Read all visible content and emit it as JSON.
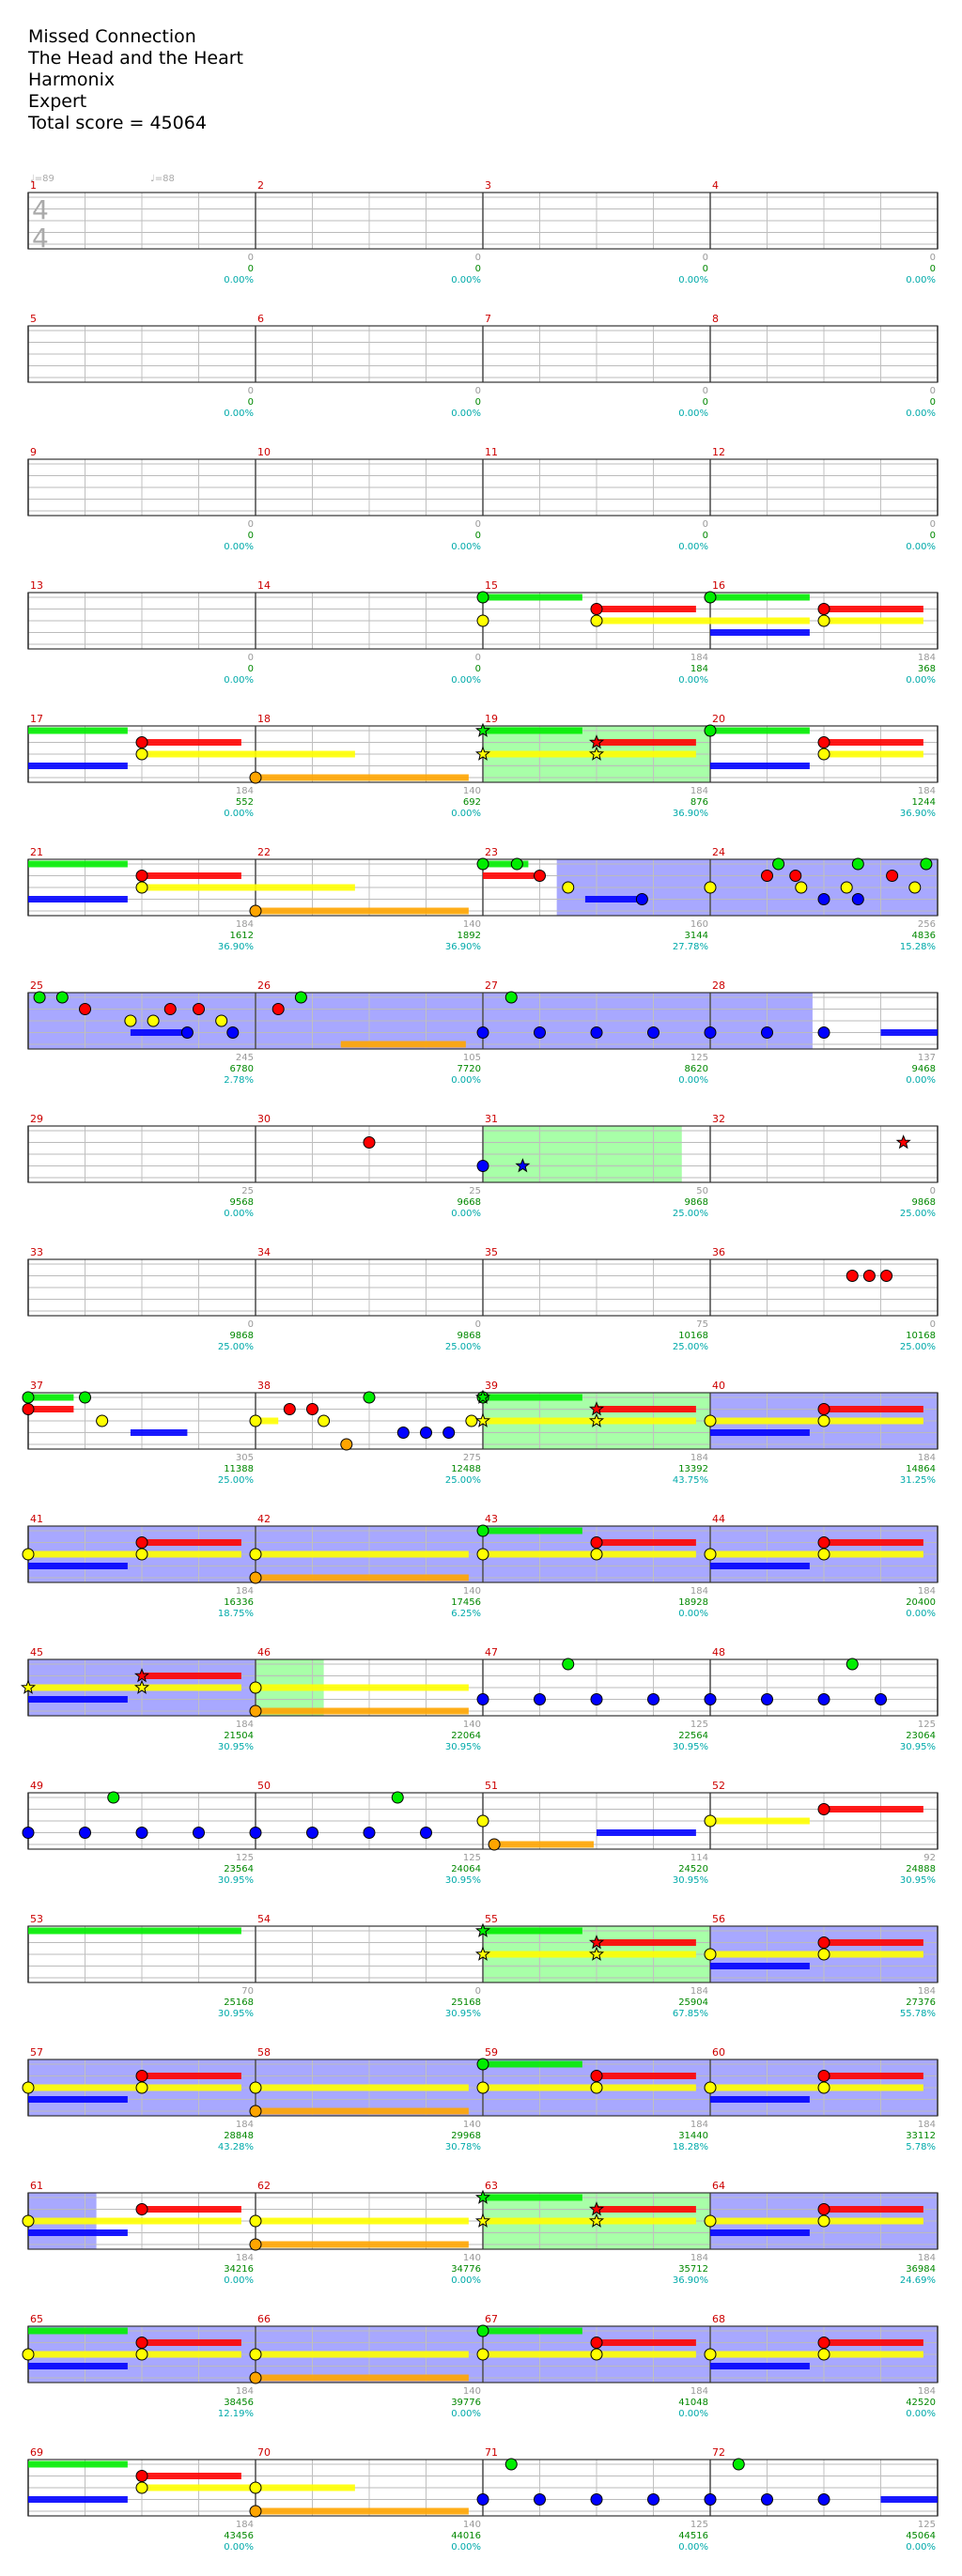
{
  "header": {
    "song": "Missed Connection",
    "artist": "The Head and the Heart",
    "charter": "Harmonix",
    "difficulty": "Expert",
    "total_score": "Total score = 45064"
  },
  "tempo": {
    "values": [
      "♩=89",
      "♩=88"
    ]
  },
  "time_signature": {
    "top": "4",
    "bottom": "4"
  },
  "colors": {
    "green": "#00ee00",
    "red": "#ff0000",
    "yellow": "#ffff00",
    "blue": "#0000ff",
    "orange": "#ffa500",
    "sp_fill": "#9999ff",
    "highlight_fill": "#99ff99",
    "measure_number": "#cc0000",
    "score_text": "#008800",
    "percent_text": "#00aaaa",
    "gray_text": "#999999"
  },
  "measures": [
    {
      "n": "1",
      "base": "",
      "score": "",
      "pct": ""
    },
    {
      "n": "2",
      "base": "0",
      "score": "0",
      "pct": "0.00%"
    },
    {
      "n": "3",
      "base": "0",
      "score": "0",
      "pct": "0.00%"
    },
    {
      "n": "4",
      "base": "0",
      "score": "0",
      "pct": "0.00%"
    },
    {
      "n": "5",
      "base": "0",
      "score": "0",
      "pct": "0.00%"
    },
    {
      "n": "6",
      "base": "0",
      "score": "0",
      "pct": "0.00%"
    },
    {
      "n": "7",
      "base": "0",
      "score": "0",
      "pct": "0.00%"
    },
    {
      "n": "8",
      "base": "0",
      "score": "0",
      "pct": "0.00%"
    },
    {
      "n": "9",
      "base": "0",
      "score": "0",
      "pct": "0.00%"
    },
    {
      "n": "10",
      "base": "0",
      "score": "0",
      "pct": "0.00%"
    },
    {
      "n": "11",
      "base": "0",
      "score": "0",
      "pct": "0.00%"
    },
    {
      "n": "12",
      "base": "0",
      "score": "0",
      "pct": "0.00%"
    },
    {
      "n": "13",
      "base": "0",
      "score": "0",
      "pct": "0.00%"
    },
    {
      "n": "14",
      "base": "0",
      "score": "0",
      "pct": "0.00%"
    },
    {
      "n": "15",
      "base": "0",
      "score": "0",
      "pct": "0.00%"
    },
    {
      "n": "16",
      "base": "184",
      "score": "184",
      "pct": "0.00%"
    },
    {
      "n": "17",
      "base": "184",
      "score": "368",
      "pct": "0.00%"
    },
    {
      "n": "18",
      "base": "184",
      "score": "552",
      "pct": "0.00%"
    },
    {
      "n": "19",
      "base": "140",
      "score": "692",
      "pct": "0.00%"
    },
    {
      "n": "20",
      "base": "184",
      "score": "876",
      "pct": "36.90%"
    },
    {
      "n": "21",
      "base": "184",
      "score": "1244",
      "pct": "36.90%"
    },
    {
      "n": "22",
      "base": "184",
      "score": "1612",
      "pct": "36.90%"
    },
    {
      "n": "23",
      "base": "140",
      "score": "1892",
      "pct": "36.90%"
    },
    {
      "n": "24",
      "base": "160",
      "score": "3144",
      "pct": "27.78%"
    },
    {
      "n": "25",
      "base": "256",
      "score": "4836",
      "pct": "15.28%"
    },
    {
      "n": "26",
      "base": "245",
      "score": "6780",
      "pct": "2.78%"
    },
    {
      "n": "27",
      "base": "105",
      "score": "7720",
      "pct": "0.00%"
    },
    {
      "n": "28",
      "base": "125",
      "score": "8620",
      "pct": "0.00%"
    },
    {
      "n": "29",
      "base": "137",
      "score": "9468",
      "pct": "0.00%"
    },
    {
      "n": "30",
      "base": "25",
      "score": "9568",
      "pct": "0.00%"
    },
    {
      "n": "31",
      "base": "25",
      "score": "9668",
      "pct": "0.00%"
    },
    {
      "n": "32",
      "base": "50",
      "score": "9868",
      "pct": "25.00%"
    },
    {
      "n": "33",
      "base": "0",
      "score": "9868",
      "pct": "25.00%"
    },
    {
      "n": "34",
      "base": "0",
      "score": "9868",
      "pct": "25.00%"
    },
    {
      "n": "35",
      "base": "0",
      "score": "9868",
      "pct": "25.00%"
    },
    {
      "n": "36",
      "base": "75",
      "score": "10168",
      "pct": "25.00%"
    },
    {
      "n": "37",
      "base": "0",
      "score": "10168",
      "pct": "25.00%"
    },
    {
      "n": "38",
      "base": "305",
      "score": "11388",
      "pct": "25.00%"
    },
    {
      "n": "39",
      "base": "275",
      "score": "12488",
      "pct": "25.00%"
    },
    {
      "n": "40",
      "base": "184",
      "score": "13392",
      "pct": "43.75%"
    },
    {
      "n": "41",
      "base": "184",
      "score": "14864",
      "pct": "31.25%"
    },
    {
      "n": "42",
      "base": "184",
      "score": "16336",
      "pct": "18.75%"
    },
    {
      "n": "43",
      "base": "140",
      "score": "17456",
      "pct": "6.25%"
    },
    {
      "n": "44",
      "base": "184",
      "score": "18928",
      "pct": "0.00%"
    },
    {
      "n": "45",
      "base": "184",
      "score": "20400",
      "pct": "0.00%"
    },
    {
      "n": "46",
      "base": "184",
      "score": "21504",
      "pct": "30.95%"
    },
    {
      "n": "47",
      "base": "140",
      "score": "22064",
      "pct": "30.95%"
    },
    {
      "n": "48",
      "base": "125",
      "score": "22564",
      "pct": "30.95%"
    },
    {
      "n": "49",
      "base": "125",
      "score": "23064",
      "pct": "30.95%"
    },
    {
      "n": "50",
      "base": "125",
      "score": "23564",
      "pct": "30.95%"
    },
    {
      "n": "51",
      "base": "125",
      "score": "24064",
      "pct": "30.95%"
    },
    {
      "n": "52",
      "base": "114",
      "score": "24520",
      "pct": "30.95%"
    },
    {
      "n": "53",
      "base": "92",
      "score": "24888",
      "pct": "30.95%"
    },
    {
      "n": "54",
      "base": "70",
      "score": "25168",
      "pct": "30.95%"
    },
    {
      "n": "55",
      "base": "0",
      "score": "25168",
      "pct": "30.95%"
    },
    {
      "n": "56",
      "base": "184",
      "score": "25904",
      "pct": "67.85%"
    },
    {
      "n": "57",
      "base": "184",
      "score": "27376",
      "pct": "55.78%"
    },
    {
      "n": "58",
      "base": "184",
      "score": "28848",
      "pct": "43.28%"
    },
    {
      "n": "59",
      "base": "140",
      "score": "29968",
      "pct": "30.78%"
    },
    {
      "n": "60",
      "base": "184",
      "score": "31440",
      "pct": "18.28%"
    },
    {
      "n": "61",
      "base": "184",
      "score": "33112",
      "pct": "5.78%"
    },
    {
      "n": "62",
      "base": "184",
      "score": "34216",
      "pct": "0.00%"
    },
    {
      "n": "63",
      "base": "140",
      "score": "34776",
      "pct": "0.00%"
    },
    {
      "n": "64",
      "base": "184",
      "score": "35712",
      "pct": "36.90%"
    },
    {
      "n": "65",
      "base": "184",
      "score": "36984",
      "pct": "24.69%"
    },
    {
      "n": "66",
      "base": "184",
      "score": "38456",
      "pct": "12.19%"
    },
    {
      "n": "67",
      "base": "140",
      "score": "39776",
      "pct": "0.00%"
    },
    {
      "n": "68",
      "base": "184",
      "score": "41048",
      "pct": "0.00%"
    },
    {
      "n": "69",
      "base": "184",
      "score": "42520",
      "pct": "0.00%"
    },
    {
      "n": "70",
      "base": "184",
      "score": "43456",
      "pct": "0.00%"
    },
    {
      "n": "71",
      "base": "140",
      "score": "44016",
      "pct": "0.00%"
    },
    {
      "n": "72",
      "base": "125",
      "score": "44516",
      "pct": "0.00%"
    },
    {
      "n": "",
      "base": "125",
      "score": "45064",
      "pct": "0.00%"
    }
  ]
}
